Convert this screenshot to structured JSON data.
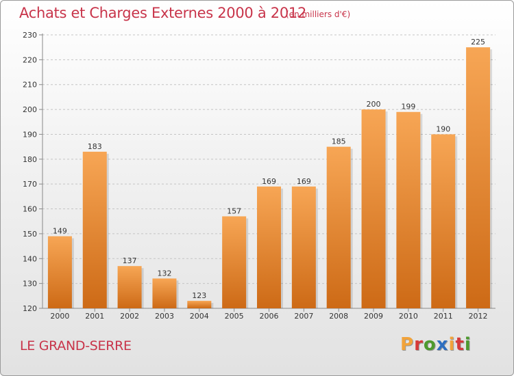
{
  "header": {
    "title": "Achats et Charges Externes 2000 à 2012",
    "unit": "(en milliers d'€)"
  },
  "footer": {
    "place": "LE GRAND-SERRE",
    "logo_text": "Proxiti"
  },
  "colors": {
    "title": "#c8344a",
    "bar_light": "#f7a655",
    "bar_dark": "#cd6a16",
    "logo_letters": [
      "#f2a33a",
      "#d63a3a",
      "#4d9a2e",
      "#2e6fc0",
      "#f2a33a",
      "#d63a3a",
      "#4d9a2e"
    ]
  },
  "chart_data": {
    "type": "bar",
    "title": "Achats et Charges Externes 2000 à 2012",
    "categories": [
      "2000",
      "2001",
      "2002",
      "2003",
      "2004",
      "2005",
      "2006",
      "2007",
      "2008",
      "2009",
      "2010",
      "2011",
      "2012"
    ],
    "values": [
      149,
      183,
      137,
      132,
      123,
      157,
      169,
      169,
      185,
      200,
      199,
      190,
      225
    ],
    "ylim": [
      120,
      230
    ],
    "yticks": [
      120,
      130,
      140,
      150,
      160,
      170,
      180,
      190,
      200,
      210,
      220,
      230
    ],
    "grid": true
  }
}
